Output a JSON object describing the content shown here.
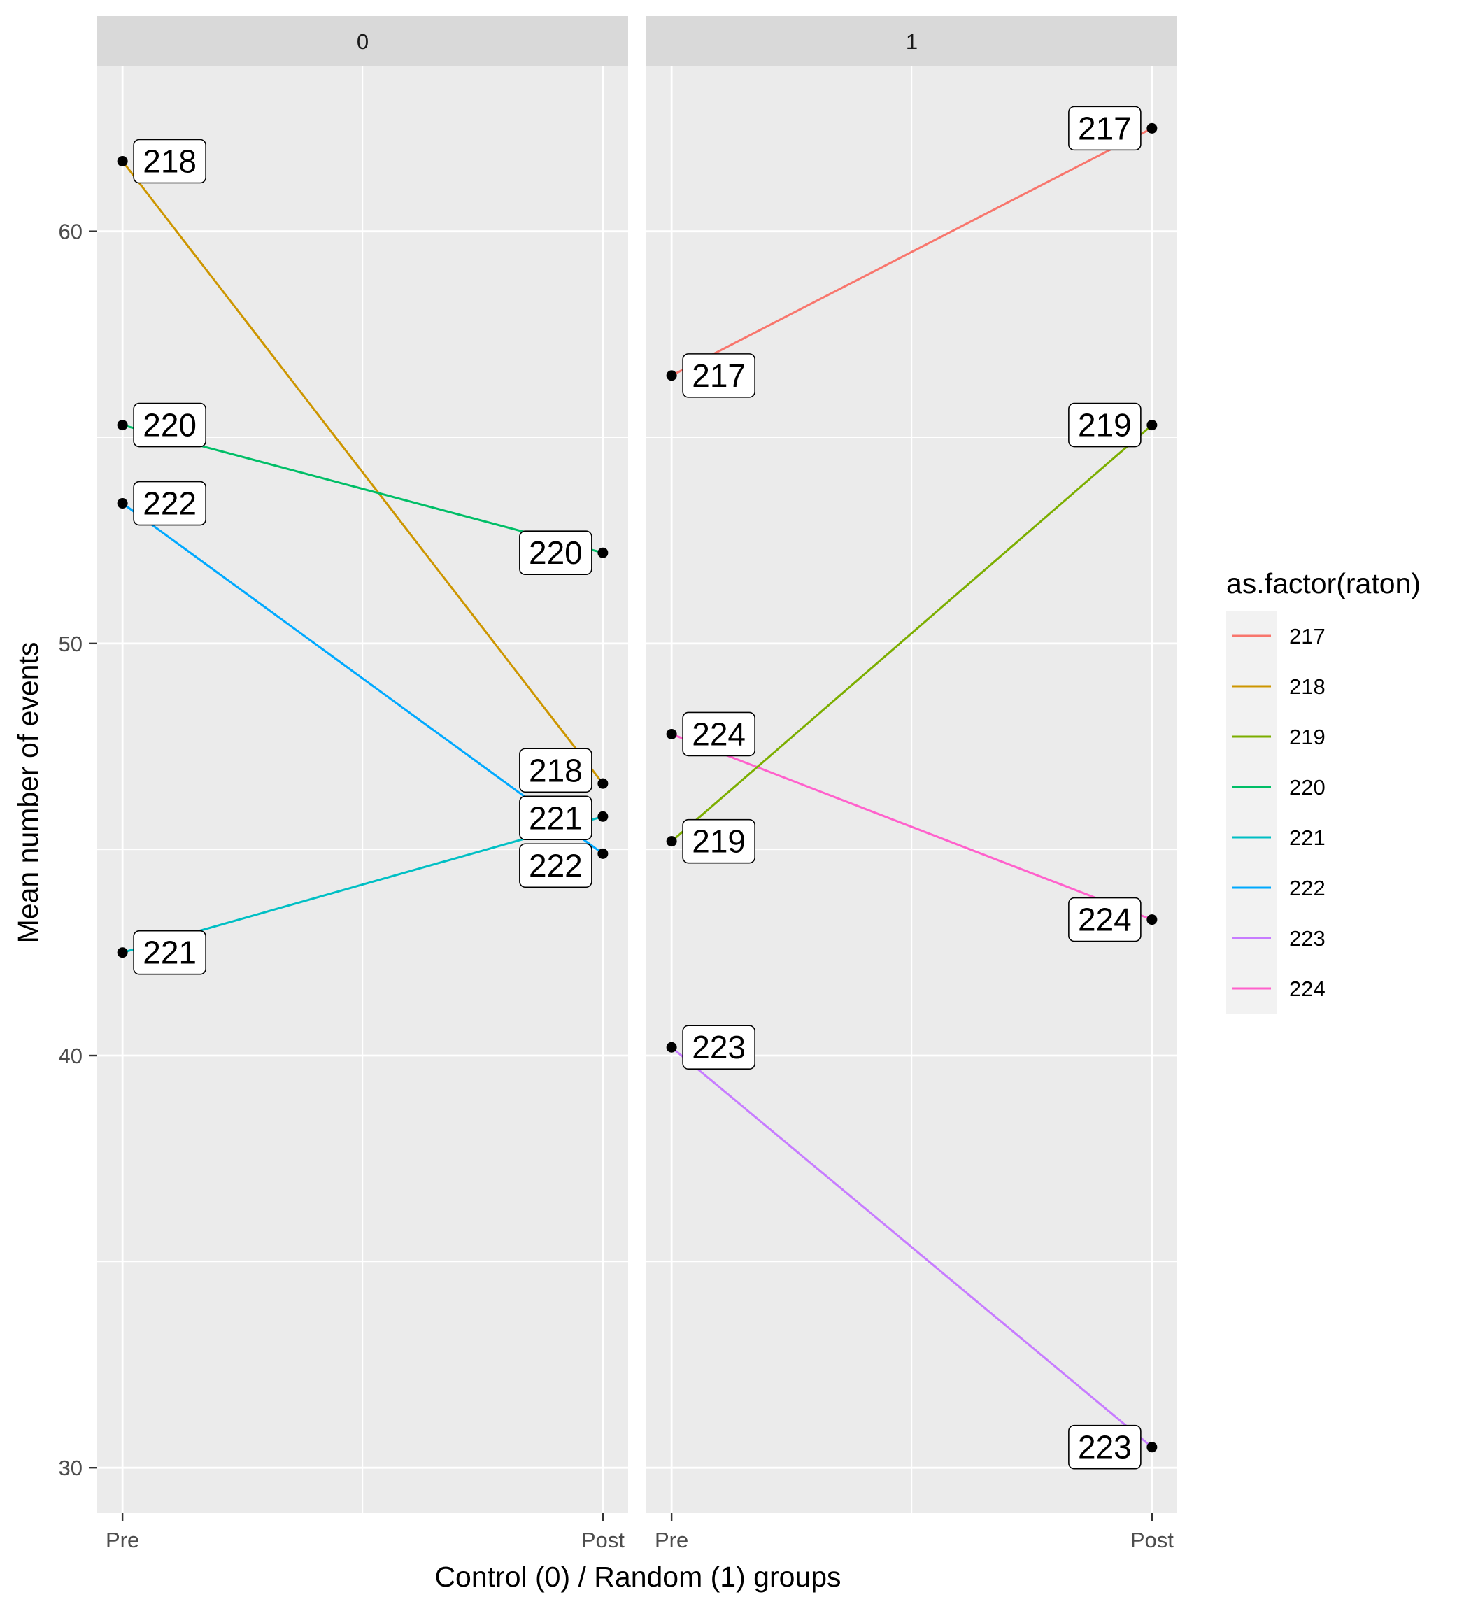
{
  "chart_data": {
    "type": "line",
    "xlabel": "Control (0) / Random (1) groups",
    "ylabel": "Mean number of events",
    "x_categories": [
      "Pre",
      "Post"
    ],
    "ylim": [
      28.9,
      64.0
    ],
    "y_ticks": [
      30,
      40,
      50,
      60
    ],
    "grid": true,
    "legend": {
      "title": "as.factor(raton)",
      "placement": "right",
      "entries": [
        {
          "name": "217",
          "color": "#F8766D"
        },
        {
          "name": "218",
          "color": "#CD9600"
        },
        {
          "name": "219",
          "color": "#7CAE00"
        },
        {
          "name": "220",
          "color": "#00BE67"
        },
        {
          "name": "221",
          "color": "#00BFC4"
        },
        {
          "name": "222",
          "color": "#00A9FF"
        },
        {
          "name": "223",
          "color": "#C77CFF"
        },
        {
          "name": "224",
          "color": "#FF61CC"
        }
      ]
    },
    "panels": [
      {
        "strip": "0",
        "series": [
          {
            "name": "218",
            "values": [
              61.7,
              46.6
            ]
          },
          {
            "name": "220",
            "values": [
              55.3,
              52.2
            ]
          },
          {
            "name": "222",
            "values": [
              53.4,
              44.9
            ]
          },
          {
            "name": "221",
            "values": [
              42.5,
              45.8
            ]
          }
        ]
      },
      {
        "strip": "1",
        "series": [
          {
            "name": "217",
            "values": [
              56.5,
              62.5
            ]
          },
          {
            "name": "224",
            "values": [
              47.8,
              43.3
            ]
          },
          {
            "name": "219",
            "values": [
              45.2,
              55.3
            ]
          },
          {
            "name": "223",
            "values": [
              40.2,
              30.5
            ]
          }
        ]
      }
    ]
  }
}
